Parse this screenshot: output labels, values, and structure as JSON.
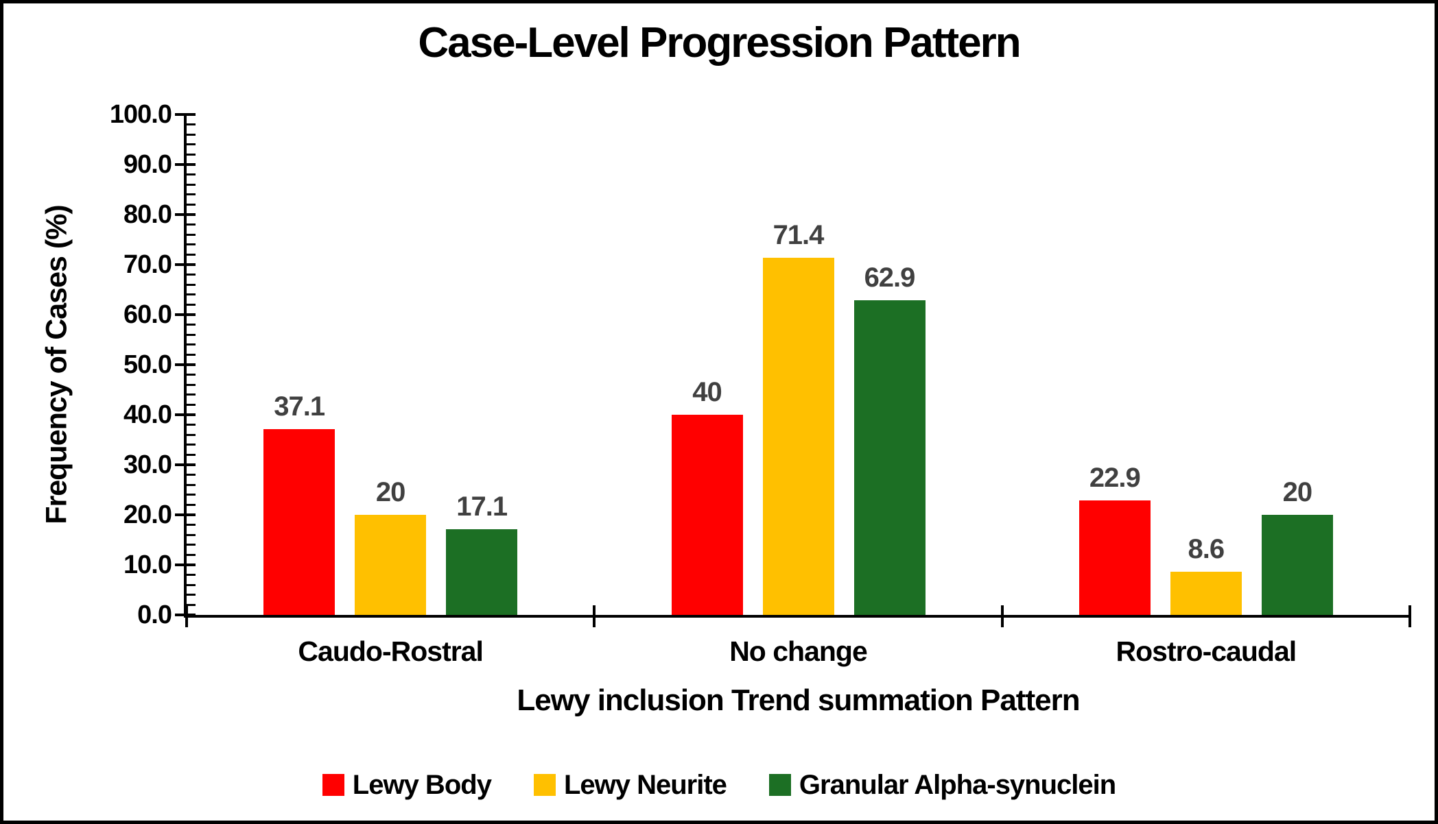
{
  "chart_data": {
    "type": "bar",
    "title": "Case-Level Progression Pattern",
    "xlabel": "Lewy inclusion Trend summation Pattern",
    "ylabel": "Frequency of Cases (%)",
    "categories": [
      "Caudo-Rostral",
      "No change",
      "Rostro-caudal"
    ],
    "series": [
      {
        "name": "Lewy Body",
        "color": "#FF0000",
        "values": [
          37.1,
          40.0,
          22.9
        ],
        "labels": [
          "37.1",
          "40",
          "22.9"
        ]
      },
      {
        "name": "Lewy Neurite",
        "color": "#FFC000",
        "values": [
          20.0,
          71.4,
          8.6
        ],
        "labels": [
          "20",
          "71.4",
          "8.6"
        ]
      },
      {
        "name": "Granular Alpha-synuclein",
        "color": "#1C6F24",
        "values": [
          17.1,
          62.9,
          20.0
        ],
        "labels": [
          "17.1",
          "62.9",
          "20"
        ]
      }
    ],
    "ylim": [
      0,
      100
    ],
    "y_major_step": 10,
    "y_minor_step": 2,
    "y_tick_labels": [
      "100.0",
      "90.0",
      "80.0",
      "70.0",
      "60.0",
      "50.0",
      "40.0",
      "30.0",
      "20.0",
      "10.0",
      "0.0"
    ],
    "grid": false,
    "legend_position": "bottom",
    "data_label_color": "#404040",
    "axis_color": "#000000",
    "frame_border_color": "#000000",
    "background_color": "#FFFFFF"
  }
}
